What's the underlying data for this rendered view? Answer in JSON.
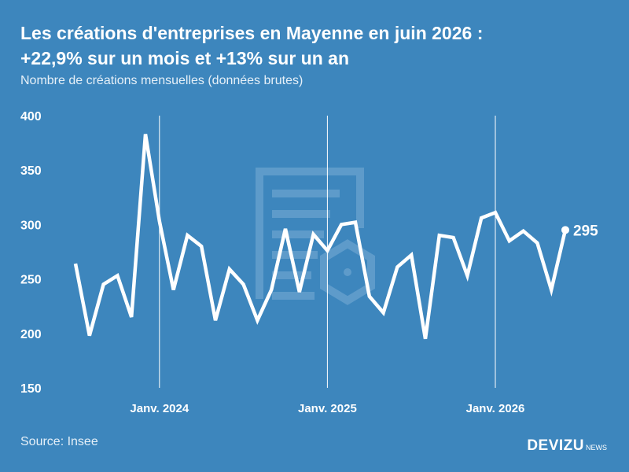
{
  "header": {
    "title_line1": "Les créations d'entreprises en Mayenne en juin 2026 :",
    "title_line2": "+22,9% sur un mois et +13% sur un an",
    "subtitle": "Nombre de créations mensuelles (données brutes)"
  },
  "footer": {
    "source": "Source: Insee",
    "brand_name": "DEVIZU",
    "brand_suffix": "NEWS"
  },
  "colors": {
    "background": "#3d86bd",
    "line": "#ffffff",
    "watermark": "#6aa3cf"
  },
  "chart_data": {
    "type": "line",
    "y_ticks": [
      150,
      200,
      250,
      300,
      350,
      400
    ],
    "ylim": [
      150,
      400
    ],
    "x_ticks": [
      {
        "label": "Janv. 2024",
        "index": 6
      },
      {
        "label": "Janv. 2025",
        "index": 18
      },
      {
        "label": "Janv. 2026",
        "index": 30
      }
    ],
    "series": [
      {
        "values": [
          264,
          198,
          245,
          253,
          215,
          383,
          303,
          240,
          290,
          280,
          212,
          259,
          245,
          212,
          240,
          296,
          238,
          291,
          276,
          300,
          302,
          234,
          219,
          261,
          272,
          195,
          290,
          288,
          253,
          306,
          311,
          285,
          294,
          283,
          240,
          295
        ]
      }
    ],
    "last_value_label": "295"
  }
}
